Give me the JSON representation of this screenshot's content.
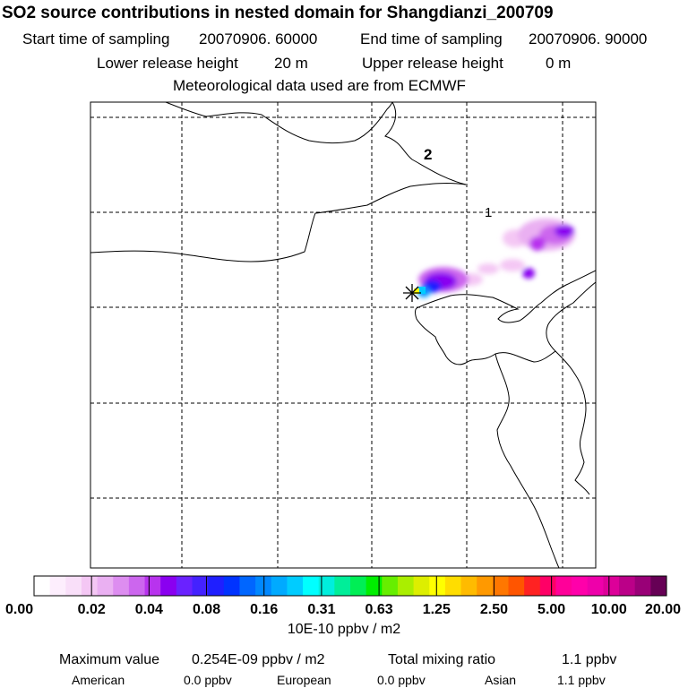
{
  "header": {
    "title": "SO2 source contributions in nested domain for Shangdianzi_200709",
    "start_label": "Start time of sampling",
    "start_value": "20070906. 60000",
    "end_label": "End time of sampling",
    "end_value": "20070906. 90000",
    "lower_label": "Lower release height",
    "lower_value": "20 m",
    "upper_label": "Upper release height",
    "upper_value": "0 m",
    "met_line": "Meteorological data used are from ECMWF"
  },
  "map": {
    "contour_labels": [
      "2",
      "1"
    ]
  },
  "colorbar": {
    "colors": [
      "#ffffff",
      "#fdeefd",
      "#f9dff9",
      "#f4c7f4",
      "#eab0f2",
      "#dd8df0",
      "#cc66ee",
      "#b833ee",
      "#8a00f0",
      "#6a22ff",
      "#4422ff",
      "#1f1fff",
      "#0033ff",
      "#0066ff",
      "#0088ff",
      "#00aaff",
      "#00ccff",
      "#00ffff",
      "#00eedd",
      "#00ee99",
      "#00ee55",
      "#00ee00",
      "#66ee00",
      "#aaee00",
      "#ddee00",
      "#ffff00",
      "#ffdd00",
      "#ffbb00",
      "#ff9900",
      "#ff7700",
      "#ff5500",
      "#ff2222",
      "#ff0066",
      "#ff0099",
      "#ff00aa",
      "#ee00aa",
      "#dd0099",
      "#bb0088",
      "#990077",
      "#660055"
    ],
    "tick_labels": [
      "0.00",
      "0.02",
      "0.04",
      "0.08",
      "0.16",
      "0.31",
      "0.63",
      "1.25",
      "2.50",
      "5.00",
      "10.00",
      "20.00"
    ],
    "unit": "10E-10 ppbv / m2"
  },
  "stats": {
    "max_label": "Maximum value",
    "max_value": "0.254E-09 ppbv / m2",
    "total_label": "Total mixing ratio",
    "total_value": "1.1 ppbv",
    "american_label": "American",
    "american_value": "0.0 ppbv",
    "european_label": "European",
    "european_value": "0.0 ppbv",
    "asian_label": "Asian",
    "asian_value": "1.1 ppbv"
  }
}
